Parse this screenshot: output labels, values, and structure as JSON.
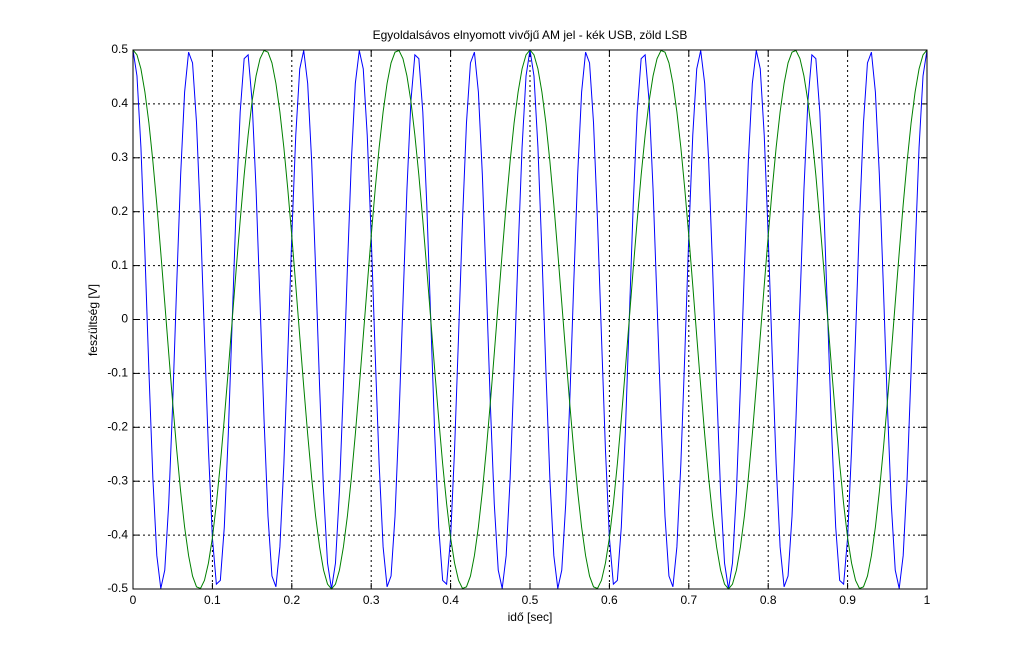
{
  "chart_data": {
    "type": "line",
    "title": "Egyoldalsávos elnyomott vivőjű AM jel - kék USB, zöld LSB",
    "xlabel": "idő [sec]",
    "ylabel": "feszültség [V]",
    "xlim": [
      0,
      1
    ],
    "ylim": [
      -0.5,
      0.5
    ],
    "xticks": [
      0,
      0.1,
      0.2,
      0.3,
      0.4,
      0.5,
      0.6,
      0.7,
      0.8,
      0.9,
      1
    ],
    "yticks": [
      -0.5,
      -0.4,
      -0.3,
      -0.2,
      -0.1,
      0,
      0.1,
      0.2,
      0.3,
      0.4,
      0.5
    ],
    "grid": true,
    "x": [
      0,
      0.005,
      0.01,
      0.015,
      0.02,
      0.025,
      0.03,
      0.035,
      0.04,
      0.045,
      0.05,
      0.055,
      0.06,
      0.065,
      0.07,
      0.075,
      0.08,
      0.085,
      0.09,
      0.095,
      0.1,
      0.105,
      0.11,
      0.115,
      0.12,
      0.125,
      0.13,
      0.135,
      0.14,
      0.145,
      0.15,
      0.155,
      0.16,
      0.165,
      0.17,
      0.175,
      0.18,
      0.185,
      0.19,
      0.195,
      0.2,
      0.205,
      0.21,
      0.215,
      0.22,
      0.225,
      0.23,
      0.235,
      0.24,
      0.245,
      0.25,
      0.255,
      0.26,
      0.265,
      0.27,
      0.275,
      0.28,
      0.285,
      0.29,
      0.295,
      0.3,
      0.305,
      0.31,
      0.315,
      0.32,
      0.325,
      0.33,
      0.335,
      0.34,
      0.345,
      0.35,
      0.355,
      0.36,
      0.365,
      0.37,
      0.375,
      0.38,
      0.385,
      0.39,
      0.395,
      0.4,
      0.405,
      0.41,
      0.415,
      0.42,
      0.425,
      0.43,
      0.435,
      0.44,
      0.445,
      0.45,
      0.455,
      0.46,
      0.465,
      0.47,
      0.475,
      0.48,
      0.485,
      0.49,
      0.495,
      0.5,
      0.505,
      0.51,
      0.515,
      0.52,
      0.525,
      0.53,
      0.535,
      0.54,
      0.545,
      0.55,
      0.555,
      0.56,
      0.565,
      0.57,
      0.575,
      0.58,
      0.585,
      0.59,
      0.595,
      0.6,
      0.605,
      0.61,
      0.615,
      0.62,
      0.625,
      0.63,
      0.635,
      0.64,
      0.645,
      0.65,
      0.655,
      0.66,
      0.665,
      0.67,
      0.675,
      0.68,
      0.685,
      0.69,
      0.695,
      0.7,
      0.705,
      0.71,
      0.715,
      0.72,
      0.725,
      0.73,
      0.735,
      0.74,
      0.745,
      0.75,
      0.755,
      0.76,
      0.765,
      0.77,
      0.775,
      0.78,
      0.785,
      0.79,
      0.795,
      0.8,
      0.805,
      0.81,
      0.815,
      0.82,
      0.825,
      0.83,
      0.835,
      0.84,
      0.845,
      0.85,
      0.855,
      0.86,
      0.865,
      0.87,
      0.875,
      0.88,
      0.885,
      0.89,
      0.895,
      0.9,
      0.905,
      0.91,
      0.915,
      0.92,
      0.925,
      0.93,
      0.935,
      0.94,
      0.945,
      0.95,
      0.955,
      0.96,
      0.965,
      0.97,
      0.975,
      0.98,
      0.985,
      0.99,
      0.995,
      1
    ],
    "series": [
      {
        "color": "#0000ff",
        "values": [
          0.5,
          0.452,
          0.319,
          0.124,
          -0.094,
          -0.294,
          -0.438,
          -0.499,
          -0.465,
          -0.342,
          -0.155,
          0.063,
          0.268,
          0.422,
          0.496,
          0.476,
          0.365,
          0.184,
          -0.031,
          -0.241,
          -0.405,
          -0.491,
          -0.484,
          -0.385,
          -0.213,
          0,
          0.213,
          0.385,
          0.484,
          0.491,
          0.405,
          0.241,
          0.031,
          -0.184,
          -0.365,
          -0.476,
          -0.496,
          -0.422,
          -0.268,
          -0.063,
          0.155,
          0.342,
          0.465,
          0.499,
          0.438,
          0.294,
          0.094,
          -0.124,
          -0.319,
          -0.452,
          -0.5,
          -0.452,
          -0.319,
          -0.124,
          0.094,
          0.294,
          0.438,
          0.499,
          0.465,
          0.342,
          0.155,
          -0.063,
          -0.268,
          -0.422,
          -0.496,
          -0.476,
          -0.365,
          -0.184,
          0.031,
          0.241,
          0.405,
          0.491,
          0.484,
          0.385,
          0.213,
          0,
          -0.213,
          -0.385,
          -0.484,
          -0.491,
          -0.405,
          -0.241,
          -0.031,
          0.184,
          0.365,
          0.476,
          0.496,
          0.422,
          0.268,
          0.063,
          -0.155,
          -0.342,
          -0.465,
          -0.499,
          -0.438,
          -0.294,
          -0.094,
          0.124,
          0.319,
          0.452,
          0.5,
          0.452,
          0.319,
          0.124,
          -0.094,
          -0.294,
          -0.438,
          -0.499,
          -0.465,
          -0.342,
          -0.155,
          0.063,
          0.268,
          0.422,
          0.496,
          0.476,
          0.365,
          0.184,
          -0.031,
          -0.241,
          -0.405,
          -0.491,
          -0.484,
          -0.385,
          -0.213,
          0,
          0.213,
          0.385,
          0.484,
          0.491,
          0.405,
          0.241,
          0.031,
          -0.184,
          -0.365,
          -0.476,
          -0.496,
          -0.422,
          -0.268,
          -0.063,
          0.155,
          0.342,
          0.465,
          0.499,
          0.438,
          0.294,
          0.094,
          -0.124,
          -0.319,
          -0.452,
          -0.5,
          -0.452,
          -0.319,
          -0.124,
          0.094,
          0.294,
          0.438,
          0.499,
          0.465,
          0.342,
          0.155,
          -0.063,
          -0.268,
          -0.422,
          -0.496,
          -0.476,
          -0.365,
          -0.184,
          0.031,
          0.241,
          0.405,
          0.491,
          0.484,
          0.385,
          0.213,
          0,
          -0.213,
          -0.385,
          -0.484,
          -0.491,
          -0.405,
          -0.241,
          -0.031,
          0.184,
          0.365,
          0.476,
          0.496,
          0.422,
          0.268,
          0.063,
          -0.155,
          -0.342,
          -0.465,
          -0.499,
          -0.438,
          -0.294,
          -0.094,
          0.124,
          0.319,
          0.452,
          0.5
        ]
      },
      {
        "color": "#008000",
        "values": [
          0.5,
          0.491,
          0.465,
          0.422,
          0.365,
          0.294,
          0.213,
          0.124,
          0.031,
          -0.063,
          -0.155,
          -0.241,
          -0.319,
          -0.385,
          -0.438,
          -0.476,
          -0.496,
          -0.499,
          -0.484,
          -0.452,
          -0.405,
          -0.342,
          -0.268,
          -0.184,
          -0.094,
          0,
          0.094,
          0.184,
          0.268,
          0.342,
          0.405,
          0.452,
          0.484,
          0.499,
          0.496,
          0.476,
          0.438,
          0.385,
          0.319,
          0.241,
          0.155,
          0.063,
          -0.031,
          -0.124,
          -0.213,
          -0.294,
          -0.365,
          -0.422,
          -0.465,
          -0.491,
          -0.5,
          -0.491,
          -0.465,
          -0.422,
          -0.365,
          -0.294,
          -0.213,
          -0.124,
          -0.031,
          0.063,
          0.155,
          0.241,
          0.319,
          0.385,
          0.438,
          0.476,
          0.496,
          0.499,
          0.484,
          0.452,
          0.405,
          0.342,
          0.268,
          0.184,
          0.094,
          0,
          -0.094,
          -0.184,
          -0.268,
          -0.342,
          -0.405,
          -0.452,
          -0.484,
          -0.499,
          -0.496,
          -0.476,
          -0.438,
          -0.385,
          -0.319,
          -0.241,
          -0.155,
          -0.063,
          0.031,
          0.124,
          0.213,
          0.294,
          0.365,
          0.422,
          0.465,
          0.491,
          0.5,
          0.491,
          0.465,
          0.422,
          0.365,
          0.294,
          0.213,
          0.124,
          0.031,
          -0.063,
          -0.155,
          -0.241,
          -0.319,
          -0.385,
          -0.438,
          -0.476,
          -0.496,
          -0.499,
          -0.484,
          -0.452,
          -0.405,
          -0.342,
          -0.268,
          -0.184,
          -0.094,
          0,
          0.094,
          0.184,
          0.268,
          0.342,
          0.405,
          0.452,
          0.484,
          0.499,
          0.496,
          0.476,
          0.438,
          0.385,
          0.319,
          0.241,
          0.155,
          0.063,
          -0.031,
          -0.124,
          -0.213,
          -0.294,
          -0.365,
          -0.422,
          -0.465,
          -0.491,
          -0.5,
          -0.491,
          -0.465,
          -0.422,
          -0.365,
          -0.294,
          -0.213,
          -0.124,
          -0.031,
          0.063,
          0.155,
          0.241,
          0.319,
          0.385,
          0.438,
          0.476,
          0.496,
          0.499,
          0.484,
          0.452,
          0.405,
          0.342,
          0.268,
          0.184,
          0.094,
          0,
          -0.094,
          -0.184,
          -0.268,
          -0.342,
          -0.405,
          -0.452,
          -0.484,
          -0.499,
          -0.496,
          -0.476,
          -0.438,
          -0.385,
          -0.319,
          -0.241,
          -0.155,
          -0.063,
          0.031,
          0.124,
          0.213,
          0.294,
          0.365,
          0.422,
          0.465,
          0.491,
          0.5
        ]
      }
    ]
  }
}
